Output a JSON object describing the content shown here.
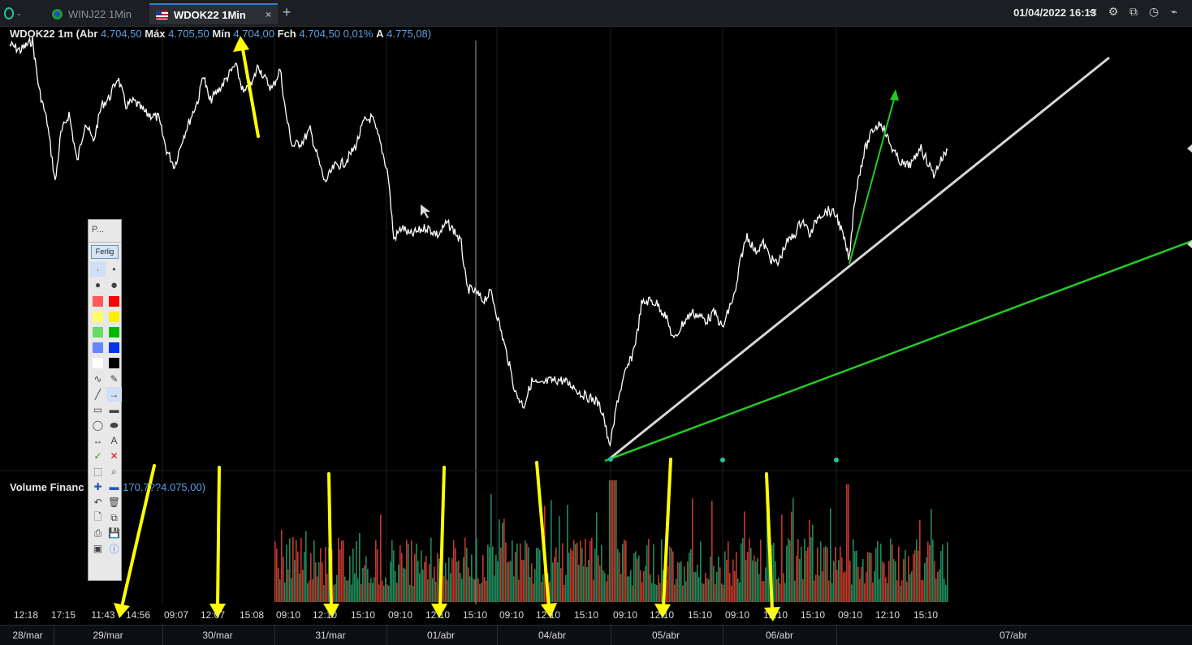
{
  "topbar": {
    "tabs": [
      {
        "label": "WINJ22 1Min",
        "active": false
      },
      {
        "label": "WDOK22 1Min",
        "active": true,
        "close": "×"
      }
    ],
    "add_tab": "+",
    "datetime": "01/04/2022 16:13",
    "icons": [
      "share-icon",
      "settings-icon",
      "popout-icon",
      "clock-icon",
      "trend-icon"
    ]
  },
  "info": {
    "symbol": "WDOK22 1m",
    "abr_label": "(Abr",
    "abr": "4.704,50",
    "max_label": "Máx",
    "max": "4.705,50",
    "min_label": "Mín",
    "min": "4.704,00",
    "fch_label": "Fch",
    "fch": "4.704,50",
    "change": "0,01%",
    "a_label": "A",
    "a": "4.775,08)"
  },
  "volume": {
    "label": "Volume Financ",
    "value": "170.7??4.075,00)"
  },
  "toolbox": {
    "title": "P...",
    "ferlig": "Ferlig",
    "colors": [
      "#ff5a5a",
      "#ff0000",
      "#ffff66",
      "#ffee00",
      "#66dd66",
      "#00bb00",
      "#6688ff",
      "#0033ee",
      "#ffffff",
      "#000000"
    ]
  },
  "x_axis_labels": [
    "12:18",
    "17:15",
    "11:43",
    "14:56",
    "09:07",
    "12:07",
    "15:08",
    "09:10",
    "12:10",
    "15:10",
    "09:10",
    "12:10",
    "15:10",
    "09:10",
    "12:10",
    "15:10",
    "09:10",
    "12:10",
    "15:10",
    "09:10",
    "12:10",
    "15:10",
    "09:10",
    "12:10",
    "15:10"
  ],
  "date_labels": [
    "28/mar",
    "29/mar",
    "30/mar",
    "31/mar",
    "01/abr",
    "04/abr",
    "05/abr",
    "06/abr",
    "07/abr"
  ],
  "colors": {
    "accent": "#23c4a0",
    "arrow": "#ffff00",
    "trend_white": "#d8d8d8",
    "trend_green": "#22cc22",
    "vol_up": "#1f8a5a",
    "vol_down": "#c0392b"
  }
}
